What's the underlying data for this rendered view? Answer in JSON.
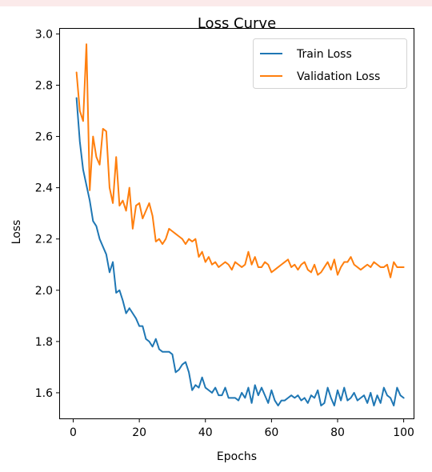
{
  "chart_data": {
    "type": "line",
    "title": "Loss Curve",
    "xlabel": "Epochs",
    "ylabel": "Loss",
    "xlim": [
      -4,
      103
    ],
    "ylim": [
      1.5,
      3.02
    ],
    "xticks": [
      0,
      20,
      40,
      60,
      80,
      100
    ],
    "yticks": [
      1.6,
      1.8,
      2.0,
      2.2,
      2.4,
      2.6,
      2.8,
      3.0
    ],
    "xtick_labels": [
      "0",
      "20",
      "40",
      "60",
      "80",
      "100"
    ],
    "ytick_labels": [
      "1.6",
      "1.8",
      "2.0",
      "2.2",
      "2.4",
      "2.6",
      "2.8",
      "3.0"
    ],
    "grid": false,
    "legend_position": "top-right",
    "x": [
      1,
      2,
      3,
      4,
      5,
      6,
      7,
      8,
      9,
      10,
      11,
      12,
      13,
      14,
      15,
      16,
      17,
      18,
      19,
      20,
      21,
      22,
      23,
      24,
      25,
      26,
      27,
      28,
      29,
      30,
      31,
      32,
      33,
      34,
      35,
      36,
      37,
      38,
      39,
      40,
      41,
      42,
      43,
      44,
      45,
      46,
      47,
      48,
      49,
      50,
      51,
      52,
      53,
      54,
      55,
      56,
      57,
      58,
      59,
      60,
      61,
      62,
      63,
      64,
      65,
      66,
      67,
      68,
      69,
      70,
      71,
      72,
      73,
      74,
      75,
      76,
      77,
      78,
      79,
      80,
      81,
      82,
      83,
      84,
      85,
      86,
      87,
      88,
      89,
      90,
      91,
      92,
      93,
      94,
      95,
      96,
      97,
      98,
      99,
      100
    ],
    "series": [
      {
        "name": "Train Loss",
        "color": "#1f77b4",
        "values": [
          2.75,
          2.58,
          2.47,
          2.41,
          2.35,
          2.27,
          2.25,
          2.2,
          2.17,
          2.14,
          2.07,
          2.11,
          1.99,
          2.0,
          1.96,
          1.91,
          1.93,
          1.91,
          1.89,
          1.86,
          1.86,
          1.81,
          1.8,
          1.78,
          1.81,
          1.77,
          1.76,
          1.76,
          1.76,
          1.75,
          1.68,
          1.69,
          1.71,
          1.72,
          1.68,
          1.61,
          1.63,
          1.62,
          1.66,
          1.62,
          1.61,
          1.6,
          1.62,
          1.59,
          1.59,
          1.62,
          1.58,
          1.58,
          1.58,
          1.57,
          1.6,
          1.58,
          1.62,
          1.56,
          1.63,
          1.59,
          1.62,
          1.59,
          1.56,
          1.61,
          1.57,
          1.55,
          1.57,
          1.57,
          1.58,
          1.59,
          1.58,
          1.59,
          1.57,
          1.58,
          1.56,
          1.59,
          1.58,
          1.61,
          1.55,
          1.56,
          1.62,
          1.58,
          1.55,
          1.61,
          1.57,
          1.62,
          1.57,
          1.58,
          1.6,
          1.57,
          1.58,
          1.59,
          1.56,
          1.6,
          1.55,
          1.59,
          1.56,
          1.62,
          1.59,
          1.58,
          1.55,
          1.62,
          1.59,
          1.58
        ]
      },
      {
        "name": "Validation Loss",
        "color": "#ff7f0e",
        "values": [
          2.85,
          2.7,
          2.66,
          2.96,
          2.39,
          2.6,
          2.52,
          2.49,
          2.63,
          2.62,
          2.4,
          2.34,
          2.52,
          2.33,
          2.35,
          2.31,
          2.4,
          2.24,
          2.33,
          2.34,
          2.28,
          2.31,
          2.34,
          2.29,
          2.19,
          2.2,
          2.18,
          2.2,
          2.24,
          2.23,
          2.22,
          2.21,
          2.2,
          2.18,
          2.2,
          2.19,
          2.2,
          2.13,
          2.15,
          2.11,
          2.13,
          2.1,
          2.11,
          2.09,
          2.1,
          2.11,
          2.1,
          2.08,
          2.11,
          2.1,
          2.09,
          2.1,
          2.15,
          2.1,
          2.13,
          2.09,
          2.09,
          2.11,
          2.1,
          2.07,
          2.08,
          2.09,
          2.1,
          2.11,
          2.12,
          2.09,
          2.1,
          2.08,
          2.1,
          2.11,
          2.08,
          2.07,
          2.1,
          2.06,
          2.07,
          2.09,
          2.11,
          2.08,
          2.12,
          2.06,
          2.09,
          2.11,
          2.11,
          2.13,
          2.1,
          2.09,
          2.08,
          2.09,
          2.1,
          2.09,
          2.11,
          2.1,
          2.09,
          2.09,
          2.1,
          2.05,
          2.11,
          2.09,
          2.09,
          2.09
        ]
      }
    ]
  }
}
